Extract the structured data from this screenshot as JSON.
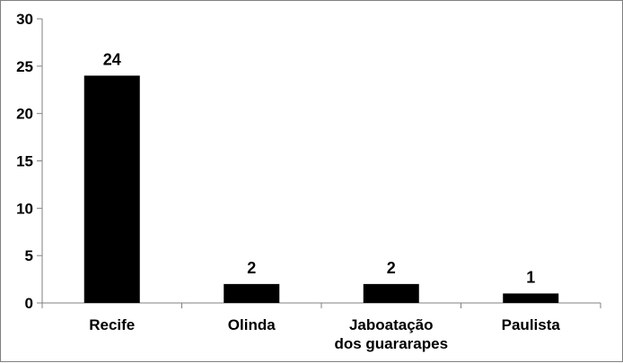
{
  "chart_data": {
    "type": "bar",
    "categories": [
      "Recife",
      "Olinda",
      "Jaboatação dos guararapes",
      "Paulista"
    ],
    "category_lines": [
      [
        "Recife"
      ],
      [
        "Olinda"
      ],
      [
        "Jaboatação",
        "dos guararapes"
      ],
      [
        "Paulista"
      ]
    ],
    "values": [
      24,
      2,
      2,
      1
    ],
    "data_labels": [
      "24",
      "2",
      "2",
      "1"
    ],
    "yticks": [
      0,
      5,
      10,
      15,
      20,
      25,
      30
    ],
    "ylim": [
      0,
      30
    ],
    "grid": false,
    "legend": false,
    "bar_color": "#000000",
    "axis_color": "#808080"
  }
}
